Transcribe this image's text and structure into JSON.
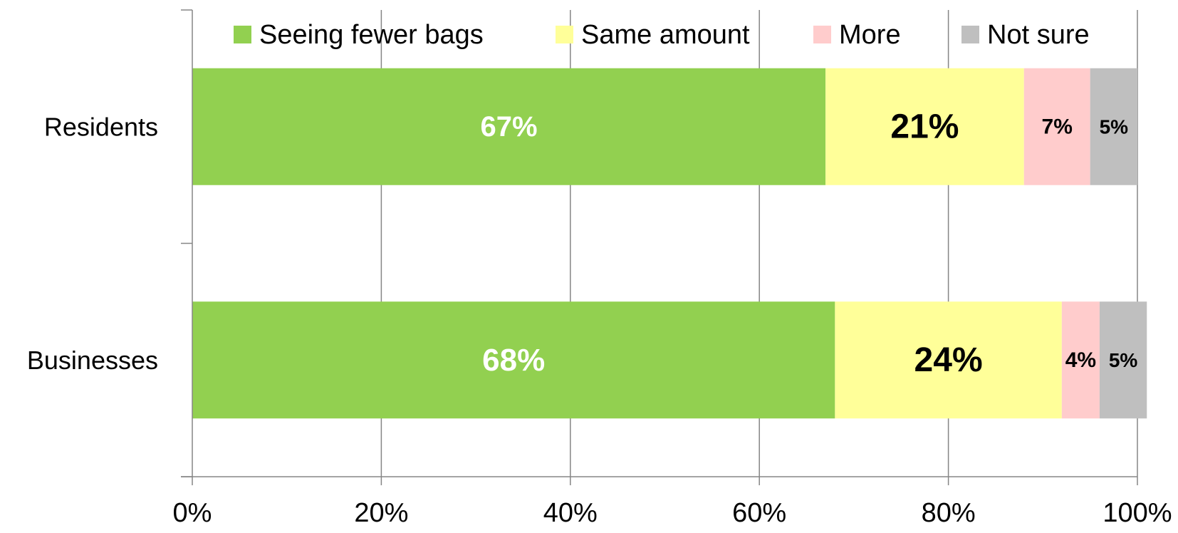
{
  "chart_data": {
    "type": "bar",
    "orientation": "horizontal",
    "stacked": "percent",
    "categories": [
      "Residents",
      "Businesses"
    ],
    "series": [
      {
        "name": "Seeing fewer bags",
        "color": "#92d050",
        "values": [
          67,
          68
        ],
        "labels": [
          "67%",
          "68%"
        ],
        "label_color": "#ffffff"
      },
      {
        "name": "Same amount",
        "color": "#ffff99",
        "values": [
          21,
          24
        ],
        "labels": [
          "21%",
          "24%"
        ],
        "label_color": "#000000"
      },
      {
        "name": "More",
        "color": "#ffcccc",
        "values": [
          7,
          4
        ],
        "labels": [
          "7%",
          "4%"
        ],
        "label_color": "#000000"
      },
      {
        "name": "Not sure",
        "color": "#bfbfbf",
        "values": [
          5,
          5
        ],
        "labels": [
          "5%",
          "5%"
        ],
        "label_color": "#000000"
      }
    ],
    "xlim": [
      0,
      100
    ],
    "xticks": [
      0,
      20,
      40,
      60,
      80,
      100
    ],
    "xtick_labels": [
      "0%",
      "20%",
      "40%",
      "60%",
      "80%",
      "100%"
    ],
    "grid": true,
    "legend": "top",
    "title": "",
    "xlabel": "",
    "ylabel": ""
  }
}
